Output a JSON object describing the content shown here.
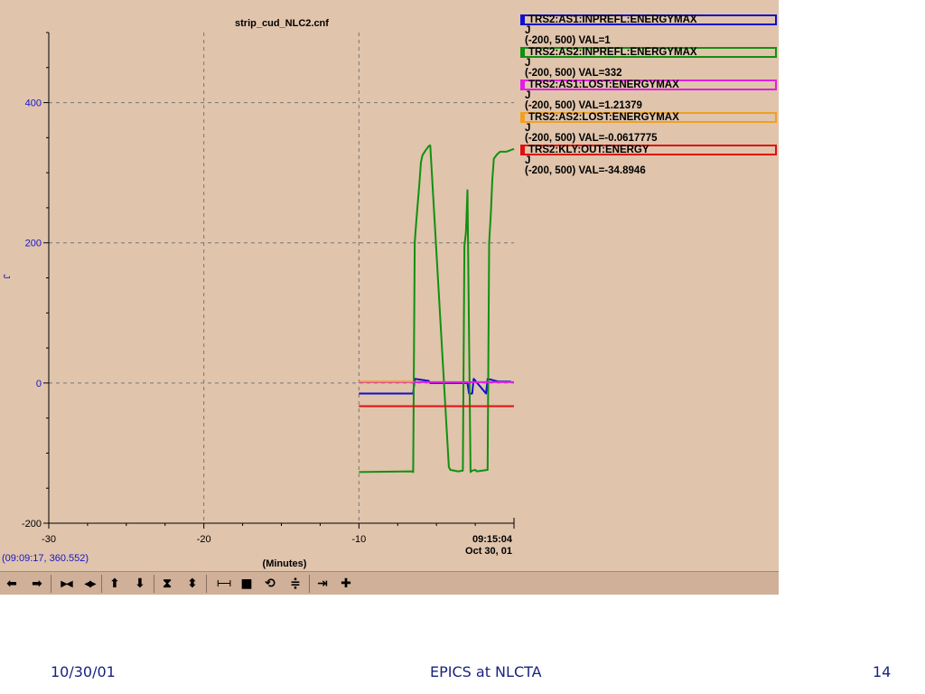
{
  "chart_data": {
    "type": "line",
    "title": "strip_cud_NLC2.cnf",
    "xlabel": "(Minutes)",
    "ylabel": "J",
    "xlim": [
      -30,
      0
    ],
    "ylim": [
      -200,
      500
    ],
    "x_ticks": [
      "-30",
      "-20",
      "-10",
      "09:15:04"
    ],
    "x_tick_sublabel": "Oct 30, 01",
    "y_ticks": [
      "400",
      "200",
      "0",
      "-200"
    ],
    "grid": true,
    "series": [
      {
        "name": "TRS2:AS1:INPREFL:ENERGYMAX",
        "color": "#1010cc",
        "x": [
          -10,
          -6.5,
          -6.4,
          -5.5,
          -5.4,
          -3,
          -2.9,
          -2.7,
          -2.6,
          -1.8,
          -1.7,
          -1,
          -0.2
        ],
        "y": [
          -15,
          -15,
          6,
          3,
          0,
          0,
          -15,
          -15,
          6,
          -15,
          6,
          2,
          2
        ]
      },
      {
        "name": "TRS2:AS2:INPREFL:ENERGYMAX",
        "color": "#119011",
        "x": [
          -10,
          -6.6,
          -6.5,
          -6.4,
          -6.3,
          -6.1,
          -6,
          -5.9,
          -5.7,
          -5.5,
          -5.4,
          -4.2,
          -4.1,
          -3.6,
          -3.3,
          -3.2,
          -3.1,
          -3,
          -2.8,
          -2.7,
          -2.5,
          -2.4,
          -1.7,
          -1.6,
          -1.5,
          -1.4,
          -1.3,
          -1.1,
          -0.9,
          -0.5,
          0
        ],
        "y": [
          -127,
          -126,
          -127,
          200,
          230,
          285,
          315,
          325,
          332,
          338,
          339,
          -120,
          -124,
          -126,
          -125,
          195,
          215,
          275,
          -127,
          -125,
          -124,
          -126,
          -124,
          200,
          240,
          290,
          320,
          326,
          330,
          330,
          334
        ]
      },
      {
        "name": "TRS2:AS1:LOST:ENERGYMAX",
        "color": "#e020e0",
        "x": [
          -10,
          0
        ],
        "y": [
          1.21379,
          1.21379
        ]
      },
      {
        "name": "TRS2:AS2:LOST:ENERGYMAX",
        "color": "#f0a020",
        "x": [
          -10,
          -6.5
        ],
        "y": [
          2,
          2
        ]
      },
      {
        "name": "TRS2:KLY:OUT:ENERGY",
        "color": "#e01010",
        "x": [
          -10,
          0
        ],
        "y": [
          -33,
          -33
        ]
      }
    ]
  },
  "legend": [
    {
      "name": "TRS2:AS1:INPREFL:ENERGYMAX",
      "unit": "J",
      "range": "(-200, 500) VAL=1",
      "color": "#1010cc"
    },
    {
      "name": "TRS2:AS2:INPREFL:ENERGYMAX",
      "unit": "J",
      "range": "(-200, 500) VAL=332",
      "color": "#119011"
    },
    {
      "name": "TRS2:AS1:LOST:ENERGYMAX",
      "unit": "J",
      "range": "(-200, 500) VAL=1.21379",
      "color": "#e020e0"
    },
    {
      "name": "TRS2:AS2:LOST:ENERGYMAX",
      "unit": "J",
      "range": "(-200, 500) VAL=-0.0617775",
      "color": "#f0a020"
    },
    {
      "name": "TRS2:KLY:OUT:ENERGY",
      "unit": "J",
      "range": "(-200, 500) VAL=-34.8946",
      "color": "#e01010"
    }
  ],
  "status": {
    "coordinates": "(09:09:17, 360.552)"
  },
  "toolbar": [
    {
      "icon": "arrow-left-icon",
      "glyph": "⬅"
    },
    {
      "icon": "arrow-right-icon",
      "glyph": "➡"
    },
    {
      "icon": "zoom-in-horizontal-icon",
      "glyph": "▶◀"
    },
    {
      "icon": "zoom-out-horizontal-icon",
      "glyph": "◀▶"
    },
    {
      "icon": "arrow-up-icon",
      "glyph": "⬆"
    },
    {
      "icon": "arrow-down-icon",
      "glyph": "⬇"
    },
    {
      "icon": "zoom-in-vertical-icon",
      "glyph": "⧗"
    },
    {
      "icon": "zoom-out-vertical-icon",
      "glyph": "⬍"
    },
    {
      "icon": "autoscale-icon",
      "glyph": "⊢⊣"
    },
    {
      "icon": "pause-icon",
      "glyph": "■"
    },
    {
      "icon": "refresh-icon",
      "glyph": "⟲"
    },
    {
      "icon": "center-icon",
      "glyph": "≑"
    },
    {
      "icon": "export-icon",
      "glyph": "⇥"
    },
    {
      "icon": "add-icon",
      "glyph": "✚"
    }
  ],
  "footer": {
    "date": "10/30/01",
    "title": "EPICS at NLCTA",
    "page": "14"
  }
}
